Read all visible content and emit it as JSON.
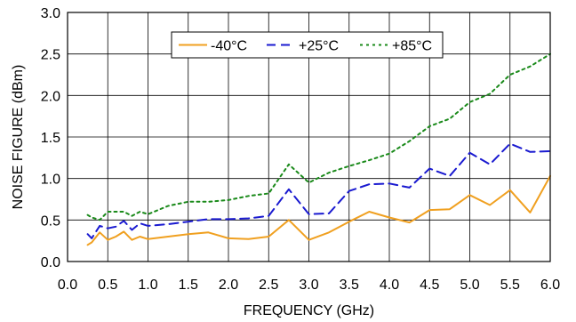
{
  "chart_data": {
    "type": "line",
    "title": "",
    "xlabel": "FREQUENCY  (GHz)",
    "ylabel": "NOISE FIGURE (dBm)",
    "xlim": [
      0.0,
      6.0
    ],
    "ylim": [
      0.0,
      3.0
    ],
    "xticks": [
      "0.0",
      "0.5",
      "1.0",
      "1.5",
      "2.0",
      "2.5",
      "3.0",
      "3.5",
      "4.0",
      "4.5",
      "5.0",
      "5.5",
      "6.0"
    ],
    "yticks": [
      "0.0",
      "0.5",
      "1.0",
      "1.5",
      "2.0",
      "2.5",
      "3.0"
    ],
    "grid": true,
    "legend_position": "top-center",
    "series": [
      {
        "name": "-40°C",
        "color": "#f0a020",
        "style": "solid",
        "x": [
          0.25,
          0.3,
          0.4,
          0.5,
          0.6,
          0.7,
          0.8,
          0.9,
          1.0,
          1.25,
          1.5,
          1.75,
          2.0,
          2.25,
          2.5,
          2.75,
          3.0,
          3.25,
          3.5,
          3.75,
          4.0,
          4.25,
          4.5,
          4.75,
          5.0,
          5.25,
          5.5,
          5.75,
          6.0
        ],
        "y": [
          0.2,
          0.23,
          0.35,
          0.26,
          0.3,
          0.36,
          0.26,
          0.3,
          0.27,
          0.3,
          0.33,
          0.35,
          0.28,
          0.27,
          0.3,
          0.5,
          0.26,
          0.35,
          0.48,
          0.6,
          0.53,
          0.47,
          0.62,
          0.63,
          0.8,
          0.68,
          0.86,
          0.59,
          1.03
        ]
      },
      {
        "name": "+25°C",
        "color": "#1a1ad0",
        "style": "dashed",
        "x": [
          0.25,
          0.3,
          0.4,
          0.5,
          0.6,
          0.7,
          0.8,
          0.9,
          1.0,
          1.25,
          1.5,
          1.75,
          2.0,
          2.25,
          2.5,
          2.75,
          3.0,
          3.25,
          3.5,
          3.75,
          4.0,
          4.25,
          4.5,
          4.75,
          5.0,
          5.25,
          5.5,
          5.75,
          6.0
        ],
        "y": [
          0.33,
          0.28,
          0.43,
          0.4,
          0.42,
          0.49,
          0.38,
          0.46,
          0.43,
          0.45,
          0.48,
          0.51,
          0.51,
          0.52,
          0.55,
          0.87,
          0.57,
          0.58,
          0.85,
          0.93,
          0.94,
          0.89,
          1.12,
          1.03,
          1.31,
          1.17,
          1.42,
          1.32,
          1.33
        ]
      },
      {
        "name": "+85°C",
        "color": "#1a8a1a",
        "style": "dotted",
        "x": [
          0.25,
          0.3,
          0.4,
          0.5,
          0.6,
          0.7,
          0.8,
          0.9,
          1.0,
          1.25,
          1.5,
          1.75,
          2.0,
          2.25,
          2.5,
          2.75,
          3.0,
          3.25,
          3.5,
          3.75,
          4.0,
          4.25,
          4.5,
          4.75,
          5.0,
          5.25,
          5.5,
          5.75,
          6.0
        ],
        "y": [
          0.56,
          0.53,
          0.5,
          0.6,
          0.6,
          0.6,
          0.55,
          0.6,
          0.57,
          0.67,
          0.72,
          0.72,
          0.74,
          0.79,
          0.82,
          1.17,
          0.95,
          1.07,
          1.15,
          1.22,
          1.3,
          1.45,
          1.63,
          1.72,
          1.92,
          2.02,
          2.25,
          2.35,
          2.5
        ]
      }
    ]
  }
}
